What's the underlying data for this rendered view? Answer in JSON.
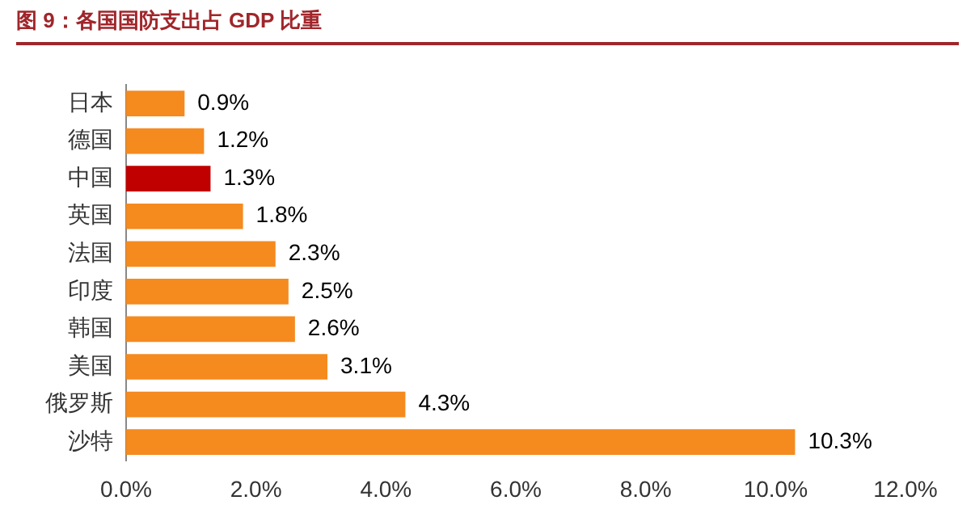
{
  "chart_data": {
    "type": "bar",
    "orientation": "horizontal",
    "title": "图 9：各国国防支出占 GDP 比重",
    "categories": [
      "日本",
      "德国",
      "中国",
      "英国",
      "法国",
      "印度",
      "韩国",
      "美国",
      "俄罗斯",
      "沙特"
    ],
    "values": [
      0.9,
      1.2,
      1.3,
      1.8,
      2.3,
      2.5,
      2.6,
      3.1,
      4.3,
      10.3
    ],
    "colors": [
      "#f58a1f",
      "#f58a1f",
      "#c00000",
      "#f58a1f",
      "#f58a1f",
      "#f58a1f",
      "#f58a1f",
      "#f58a1f",
      "#f58a1f",
      "#f58a1f"
    ],
    "value_labels": [
      "0.9%",
      "1.2%",
      "1.3%",
      "1.8%",
      "2.3%",
      "2.5%",
      "2.6%",
      "3.1%",
      "4.3%",
      "10.3%"
    ],
    "xlim": [
      0,
      12
    ],
    "xticks": [
      {
        "value": 0,
        "label": "0.0%"
      },
      {
        "value": 2,
        "label": "2.0%"
      },
      {
        "value": 4,
        "label": "4.0%"
      },
      {
        "value": 6,
        "label": "6.0%"
      },
      {
        "value": 8,
        "label": "8.0%"
      },
      {
        "value": 10,
        "label": "10.0%"
      },
      {
        "value": 12,
        "label": "12.0%"
      }
    ],
    "grid": false,
    "legend": false
  }
}
